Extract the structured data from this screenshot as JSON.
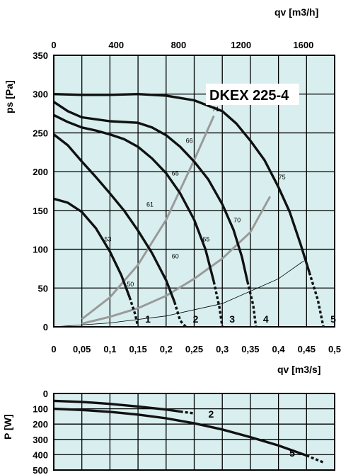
{
  "chart_data": [
    {
      "type": "line",
      "title": "DKEX 225-4",
      "xlabel": "qv [m3/s]",
      "ylabel": "ps [Pa]",
      "top_axis_label": "qv [m3/h]",
      "xlim": [
        0,
        0.5
      ],
      "ylim": [
        0,
        350
      ],
      "top_axis_lim": [
        0,
        1800
      ],
      "x_ticks": [
        "0",
        "0,05",
        "0,1",
        "0,15",
        "0,2",
        "0,25",
        "0,3",
        "0,35",
        "0,4",
        "0,45",
        "0,5"
      ],
      "y_ticks": [
        "0",
        "50",
        "100",
        "150",
        "200",
        "250",
        "300",
        "350"
      ],
      "top_ticks": [
        "0",
        "400",
        "800",
        "1200",
        "1600"
      ],
      "grid": true,
      "background": "#d9efef",
      "series": [
        {
          "name": "1",
          "points": [
            [
              0,
              165
            ],
            [
              0.025,
              160
            ],
            [
              0.05,
              148
            ],
            [
              0.075,
              127
            ],
            [
              0.1,
              97
            ],
            [
              0.12,
              67
            ],
            [
              0.135,
              38
            ],
            [
              0.145,
              16
            ],
            [
              0.15,
              0
            ]
          ]
        },
        {
          "name": "2",
          "points": [
            [
              0,
              248
            ],
            [
              0.025,
              234
            ],
            [
              0.05,
              213
            ],
            [
              0.075,
              193
            ],
            [
              0.1,
              172
            ],
            [
              0.125,
              150
            ],
            [
              0.15,
              124
            ],
            [
              0.175,
              95
            ],
            [
              0.2,
              60
            ],
            [
              0.215,
              32
            ],
            [
              0.225,
              8
            ],
            [
              0.235,
              0
            ]
          ]
        },
        {
          "name": "3",
          "points": [
            [
              0,
              273
            ],
            [
              0.025,
              264
            ],
            [
              0.05,
              257
            ],
            [
              0.075,
              253
            ],
            [
              0.1,
              248
            ],
            [
              0.125,
              242
            ],
            [
              0.15,
              232
            ],
            [
              0.175,
              217
            ],
            [
              0.2,
              198
            ],
            [
              0.225,
              172
            ],
            [
              0.25,
              138
            ],
            [
              0.27,
              100
            ],
            [
              0.285,
              58
            ],
            [
              0.295,
              25
            ],
            [
              0.3,
              0
            ]
          ]
        },
        {
          "name": "4",
          "points": [
            [
              0,
              290
            ],
            [
              0.025,
              278
            ],
            [
              0.05,
              270
            ],
            [
              0.1,
              265
            ],
            [
              0.15,
              263
            ],
            [
              0.175,
              257
            ],
            [
              0.2,
              247
            ],
            [
              0.225,
              232
            ],
            [
              0.25,
              213
            ],
            [
              0.275,
              190
            ],
            [
              0.3,
              158
            ],
            [
              0.32,
              125
            ],
            [
              0.335,
              90
            ],
            [
              0.345,
              58
            ],
            [
              0.355,
              28
            ],
            [
              0.36,
              0
            ]
          ]
        },
        {
          "name": "5",
          "points": [
            [
              0,
              300
            ],
            [
              0.05,
              299
            ],
            [
              0.1,
              299
            ],
            [
              0.15,
              300
            ],
            [
              0.2,
              298
            ],
            [
              0.25,
              292
            ],
            [
              0.3,
              278
            ],
            [
              0.325,
              262
            ],
            [
              0.35,
              240
            ],
            [
              0.375,
              215
            ],
            [
              0.4,
              180
            ],
            [
              0.42,
              148
            ],
            [
              0.44,
              105
            ],
            [
              0.455,
              70
            ],
            [
              0.47,
              35
            ],
            [
              0.48,
              0
            ]
          ]
        }
      ],
      "efficiency_lines": [
        {
          "points": [
            [
              0.05,
              10
            ],
            [
              0.1,
              38
            ],
            [
              0.15,
              80
            ],
            [
              0.2,
              138
            ],
            [
              0.25,
              215
            ],
            [
              0.285,
              272
            ]
          ]
        },
        {
          "points": [
            [
              0.05,
              4
            ],
            [
              0.1,
              13
            ],
            [
              0.15,
              24
            ],
            [
              0.2,
              40
            ],
            [
              0.25,
              62
            ],
            [
              0.3,
              88
            ],
            [
              0.35,
              122
            ],
            [
              0.385,
              168
            ]
          ]
        },
        {
          "points": [
            [
              0,
              0
            ],
            [
              0.1,
              5
            ],
            [
              0.2,
              14
            ],
            [
              0.3,
              30
            ],
            [
              0.4,
              62
            ],
            [
              0.445,
              85
            ]
          ]
        }
      ],
      "efficiency_labels": [
        "53",
        "50",
        "61",
        "60",
        "65",
        "65",
        "66",
        "71",
        "70",
        "75"
      ]
    },
    {
      "type": "line",
      "xlabel": "",
      "ylabel": "P [W]",
      "xlim": [
        0,
        0.5
      ],
      "ylim": [
        500,
        0
      ],
      "y_ticks": [
        "0",
        "100",
        "200",
        "300",
        "400",
        "500"
      ],
      "grid": true,
      "background": "#d9efef",
      "series": [
        {
          "name": "2",
          "points": [
            [
              0,
              48
            ],
            [
              0.05,
              55
            ],
            [
              0.1,
              68
            ],
            [
              0.15,
              85
            ],
            [
              0.2,
              105
            ],
            [
              0.225,
              118
            ],
            [
              0.25,
              130
            ]
          ]
        },
        {
          "name": "5",
          "points": [
            [
              0,
              100
            ],
            [
              0.05,
              108
            ],
            [
              0.1,
              120
            ],
            [
              0.15,
              138
            ],
            [
              0.2,
              162
            ],
            [
              0.25,
              195
            ],
            [
              0.3,
              235
            ],
            [
              0.35,
              285
            ],
            [
              0.4,
              340
            ],
            [
              0.45,
              405
            ],
            [
              0.48,
              450
            ]
          ]
        }
      ]
    }
  ]
}
